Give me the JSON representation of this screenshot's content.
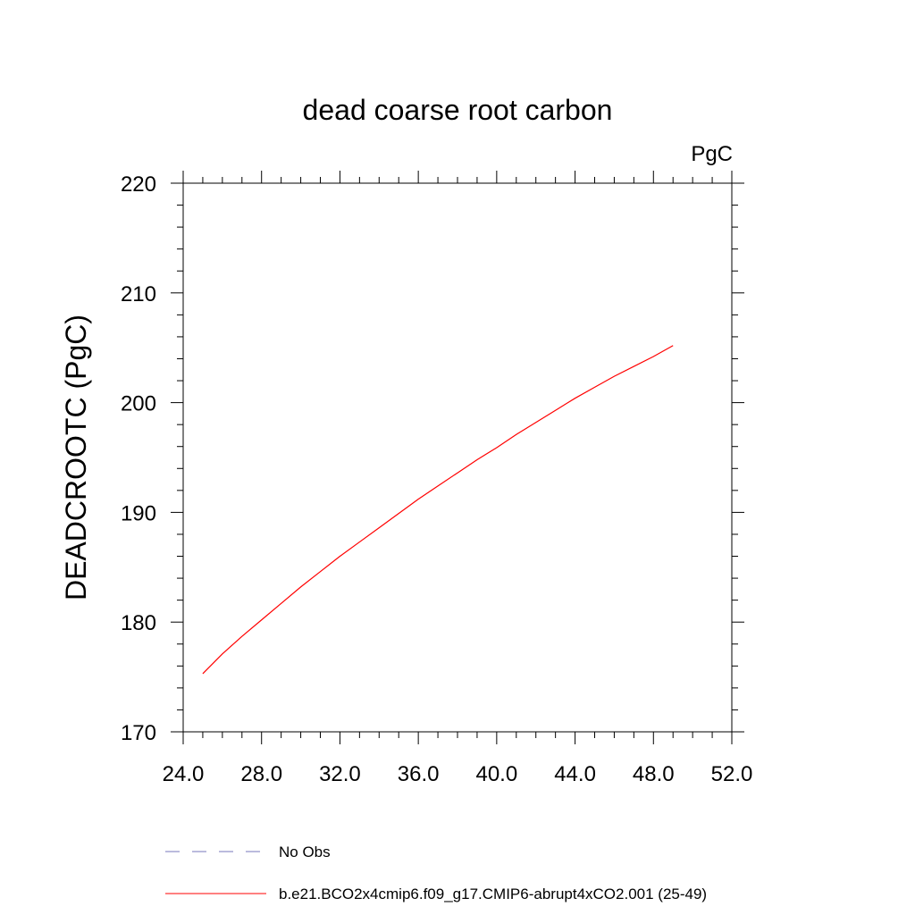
{
  "chart_data": {
    "type": "line",
    "title": "dead coarse root carbon",
    "units_label": "PgC",
    "xlabel": "",
    "ylabel": "DEADCROOTC  (PgC)",
    "xlim": [
      24.0,
      52.0
    ],
    "ylim": [
      170,
      220
    ],
    "x_ticks": [
      "24.0",
      "28.0",
      "32.0",
      "36.0",
      "40.0",
      "44.0",
      "48.0",
      "52.0"
    ],
    "y_ticks": [
      "170",
      "180",
      "190",
      "200",
      "210",
      "220"
    ],
    "grid": false,
    "legend_position": "bottom-left",
    "series": [
      {
        "name": "b.e21.BCO2x4cmip6.f09_g17.CMIP6-abrupt4xCO2.001 (25-49)",
        "color": "#ff0000",
        "style": "solid",
        "x": [
          25,
          26,
          27,
          28,
          29,
          30,
          31,
          32,
          33,
          34,
          35,
          36,
          37,
          38,
          39,
          40,
          41,
          42,
          43,
          44,
          45,
          46,
          47,
          48,
          49
        ],
        "y": [
          175.3,
          177.1,
          178.7,
          180.2,
          181.7,
          183.2,
          184.6,
          186.0,
          187.3,
          188.6,
          189.9,
          191.2,
          192.4,
          193.6,
          194.8,
          195.9,
          197.1,
          198.2,
          199.3,
          200.4,
          201.4,
          202.4,
          203.3,
          204.2,
          205.2
        ]
      },
      {
        "name": "No Obs",
        "color": "#7777bb",
        "style": "dashed",
        "x": [],
        "y": []
      }
    ]
  }
}
